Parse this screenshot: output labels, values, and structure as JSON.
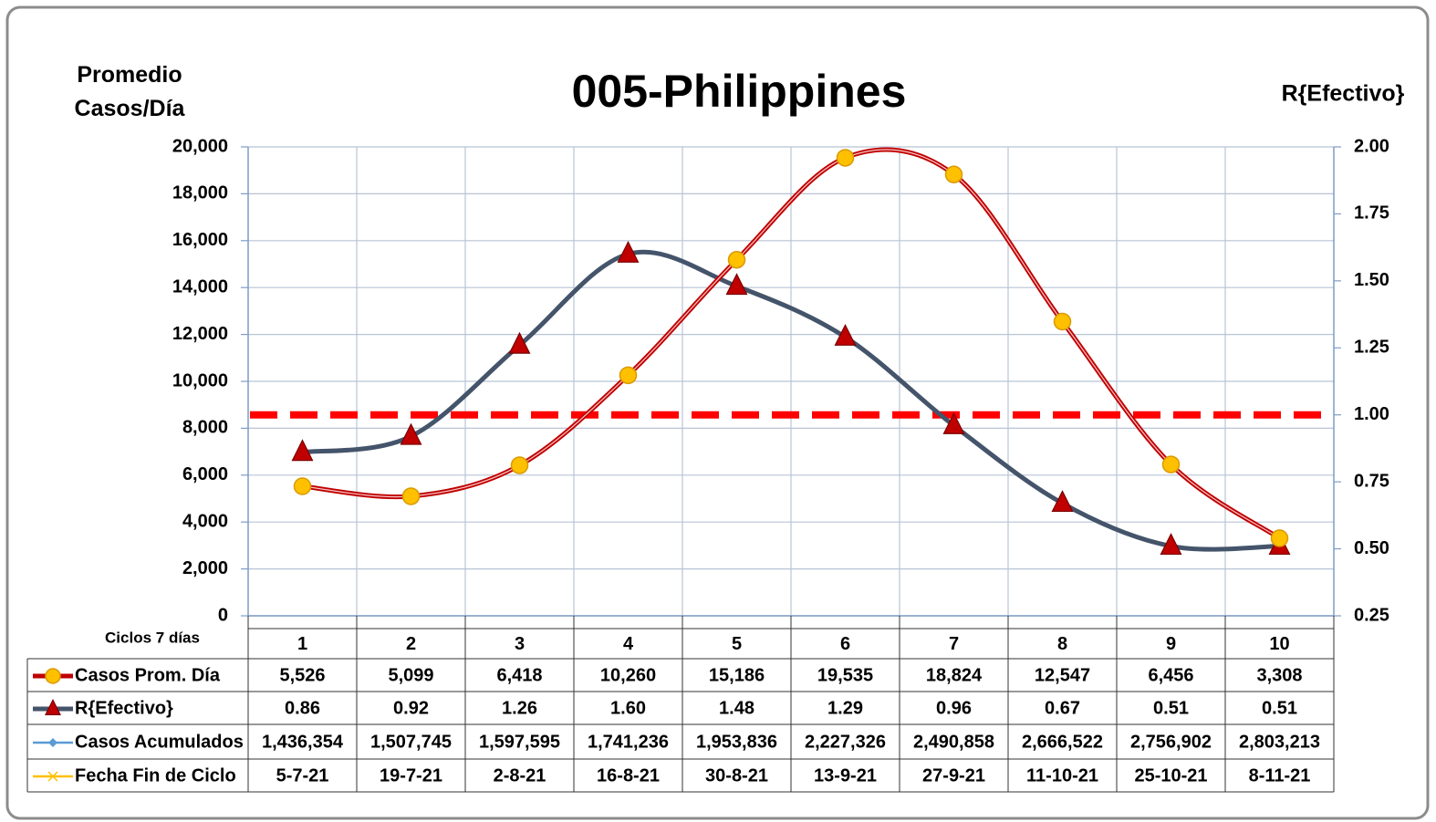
{
  "chart_data": {
    "type": "line",
    "title": "005-Philippines",
    "ylabel": "Promedio Casos/Día",
    "y2label": "R{Efectivo}",
    "category_label": "Ciclos 7 días",
    "categories": [
      "1",
      "2",
      "3",
      "4",
      "5",
      "6",
      "7",
      "8",
      "9",
      "10"
    ],
    "ylim": [
      0,
      20000
    ],
    "yticks": [
      {
        "value": 0,
        "label": "0"
      },
      {
        "value": 2000,
        "label": "2,000"
      },
      {
        "value": 4000,
        "label": "4,000"
      },
      {
        "value": 6000,
        "label": "6,000"
      },
      {
        "value": 8000,
        "label": "8,000"
      },
      {
        "value": 10000,
        "label": "10,000"
      },
      {
        "value": 12000,
        "label": "12,000"
      },
      {
        "value": 14000,
        "label": "14,000"
      },
      {
        "value": 16000,
        "label": "16,000"
      },
      {
        "value": 18000,
        "label": "18,000"
      },
      {
        "value": 20000,
        "label": "20,000"
      }
    ],
    "y2lim": [
      0.25,
      2
    ],
    "y2ticks": [
      0.25,
      {
        "value": 0.5,
        "label": "0.50"
      },
      0.75,
      {
        "value": 1,
        "label": "1.00"
      },
      1.25,
      {
        "value": 1.5,
        "label": "1.50"
      },
      1.75,
      {
        "value": 2,
        "label": "2.00"
      }
    ],
    "grid": true,
    "smooth": true,
    "reference_line": {
      "value": 1,
      "axis": "y2",
      "color": "#ff0000"
    },
    "series": [
      {
        "name": "Casos Prom. Día",
        "axis": "y",
        "color": "#c00000",
        "marker": "circle",
        "marker_color": "#ffc000",
        "values": [
          5526,
          5099,
          6418,
          10260,
          15186,
          19535,
          18824,
          12547,
          6456,
          3308
        ],
        "value_labels": [
          "5,526",
          "5,099",
          "6,418",
          "10,260",
          "15,186",
          "19,535",
          "18,824",
          "12,547",
          "6,456",
          "3,308"
        ]
      },
      {
        "name": "R{Efectivo}",
        "axis": "y2",
        "color": "#44546a",
        "marker": "triangle",
        "marker_color": "#c00000",
        "values": [
          0.86,
          0.92,
          1.26,
          1.6,
          1.48,
          1.29,
          0.96,
          0.67,
          0.51,
          0.51
        ],
        "value_labels": [
          "0.86",
          "0.92",
          "1.26",
          "1.60",
          "1.48",
          "1.29",
          "0.96",
          "0.67",
          "0.51",
          "0.51"
        ]
      },
      {
        "name": "Casos Acumulados",
        "color": "#5b9bd5",
        "marker": "diamond",
        "marker_color": "#5b9bd5",
        "values": [
          1436354,
          1507745,
          1597595,
          1741236,
          1953836,
          2227326,
          2490858,
          2666522,
          2756902,
          2803213
        ],
        "value_labels": [
          "1,436,354",
          "1,507,745",
          "1,597,595",
          "1,741,236",
          "1,953,836",
          "2,227,326",
          "2,490,858",
          "2,666,522",
          "2,756,902",
          "2,803,213"
        ]
      },
      {
        "name": "Fecha Fin de Ciclo",
        "color": "#ffc000",
        "marker": "x",
        "marker_color": "#ffc000",
        "values": [
          "5-7-21",
          "19-7-21",
          "2-8-21",
          "16-8-21",
          "30-8-21",
          "13-9-21",
          "27-9-21",
          "11-10-21",
          "25-10-21",
          "8-11-21"
        ]
      }
    ]
  }
}
